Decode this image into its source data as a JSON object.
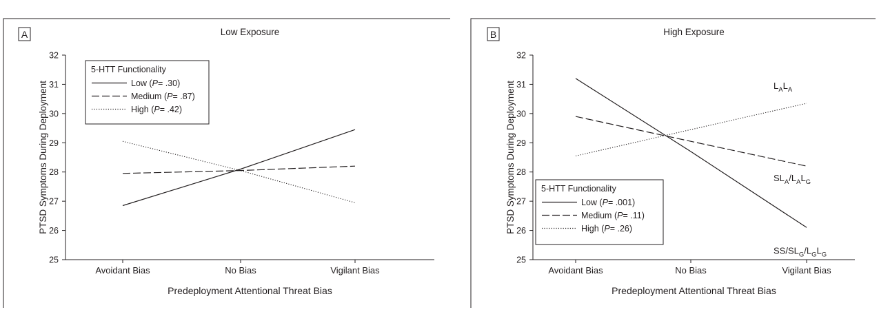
{
  "chart_data": [
    {
      "panel_label": "A",
      "type": "line",
      "title": "Low Exposure",
      "xlabel": "Predeployment Attentional Threat Bias",
      "ylabel": "PTSD Symptoms During Deployment",
      "categories": [
        "Avoidant Bias",
        "No Bias",
        "Vigilant Bias"
      ],
      "ylim": [
        25,
        32
      ],
      "yticks": [
        "25",
        "26",
        "27",
        "28",
        "29",
        "30",
        "31",
        "32"
      ],
      "grid": false,
      "legend": {
        "placement": "top-left",
        "title": "5-HTT Functionality",
        "entries": [
          {
            "series": 0,
            "name": "Low",
            "pre": "(",
            "p_label": "P",
            "p_value": "= .30",
            "post": ")"
          },
          {
            "series": 1,
            "name": "Medium",
            "pre": "(",
            "p_label": "P",
            "p_value": "= .87",
            "post": ")"
          },
          {
            "series": 2,
            "name": "High",
            "pre": "(",
            "p_label": "P",
            "p_value": "= .42",
            "post": ")"
          }
        ]
      },
      "series": [
        {
          "name": "Low",
          "style": "solid",
          "values": [
            26.85,
            28.1,
            29.45
          ]
        },
        {
          "name": "Medium",
          "style": "dashed",
          "values": [
            27.95,
            28.05,
            28.2
          ]
        },
        {
          "name": "High",
          "style": "dotted",
          "values": [
            29.05,
            28.05,
            26.95
          ]
        }
      ],
      "line_labels": []
    },
    {
      "panel_label": "B",
      "type": "line",
      "title": "High Exposure",
      "xlabel": "Predeployment Attentional Threat Bias",
      "ylabel": "PTSD Symptoms During Deployment",
      "categories": [
        "Avoidant Bias",
        "No Bias",
        "Vigilant Bias"
      ],
      "ylim": [
        25,
        32
      ],
      "yticks": [
        "25",
        "26",
        "27",
        "28",
        "29",
        "30",
        "31",
        "32"
      ],
      "grid": false,
      "legend": {
        "placement": "bottom-left",
        "title": "5-HTT Functionality",
        "entries": [
          {
            "series": 0,
            "name": "Low",
            "pre": "(",
            "p_label": "P",
            "p_value": "= .001",
            "post": ")"
          },
          {
            "series": 1,
            "name": "Medium",
            "pre": "(",
            "p_label": "P",
            "p_value": "= .11",
            "post": ")"
          },
          {
            "series": 2,
            "name": "High",
            "pre": "(",
            "p_label": "P",
            "p_value": "= .26",
            "post": ")"
          }
        ]
      },
      "series": [
        {
          "name": "Low",
          "style": "solid",
          "values": [
            31.2,
            28.7,
            26.1
          ]
        },
        {
          "name": "Medium",
          "style": "dashed",
          "values": [
            29.9,
            29.05,
            28.2
          ]
        },
        {
          "name": "High",
          "style": "dotted",
          "values": [
            28.55,
            29.45,
            30.35
          ]
        }
      ],
      "line_labels": [
        {
          "series": 2,
          "parts": [
            {
              "t": "L"
            },
            {
              "t": "A",
              "sub": true
            },
            {
              "t": "L"
            },
            {
              "t": "A",
              "sub": true
            }
          ]
        },
        {
          "series": 1,
          "parts": [
            {
              "t": "SL"
            },
            {
              "t": "A",
              "sub": true
            },
            {
              "t": "/L"
            },
            {
              "t": "A",
              "sub": true
            },
            {
              "t": "L"
            },
            {
              "t": "G",
              "sub": true
            }
          ]
        },
        {
          "series": 0,
          "parts": [
            {
              "t": "SS/SL"
            },
            {
              "t": "G",
              "sub": true
            },
            {
              "t": "/L"
            },
            {
              "t": "G",
              "sub": true
            },
            {
              "t": "L"
            },
            {
              "t": "G",
              "sub": true
            }
          ]
        }
      ]
    }
  ],
  "colors": {
    "ink": "#231f20",
    "background": "#ffffff"
  }
}
